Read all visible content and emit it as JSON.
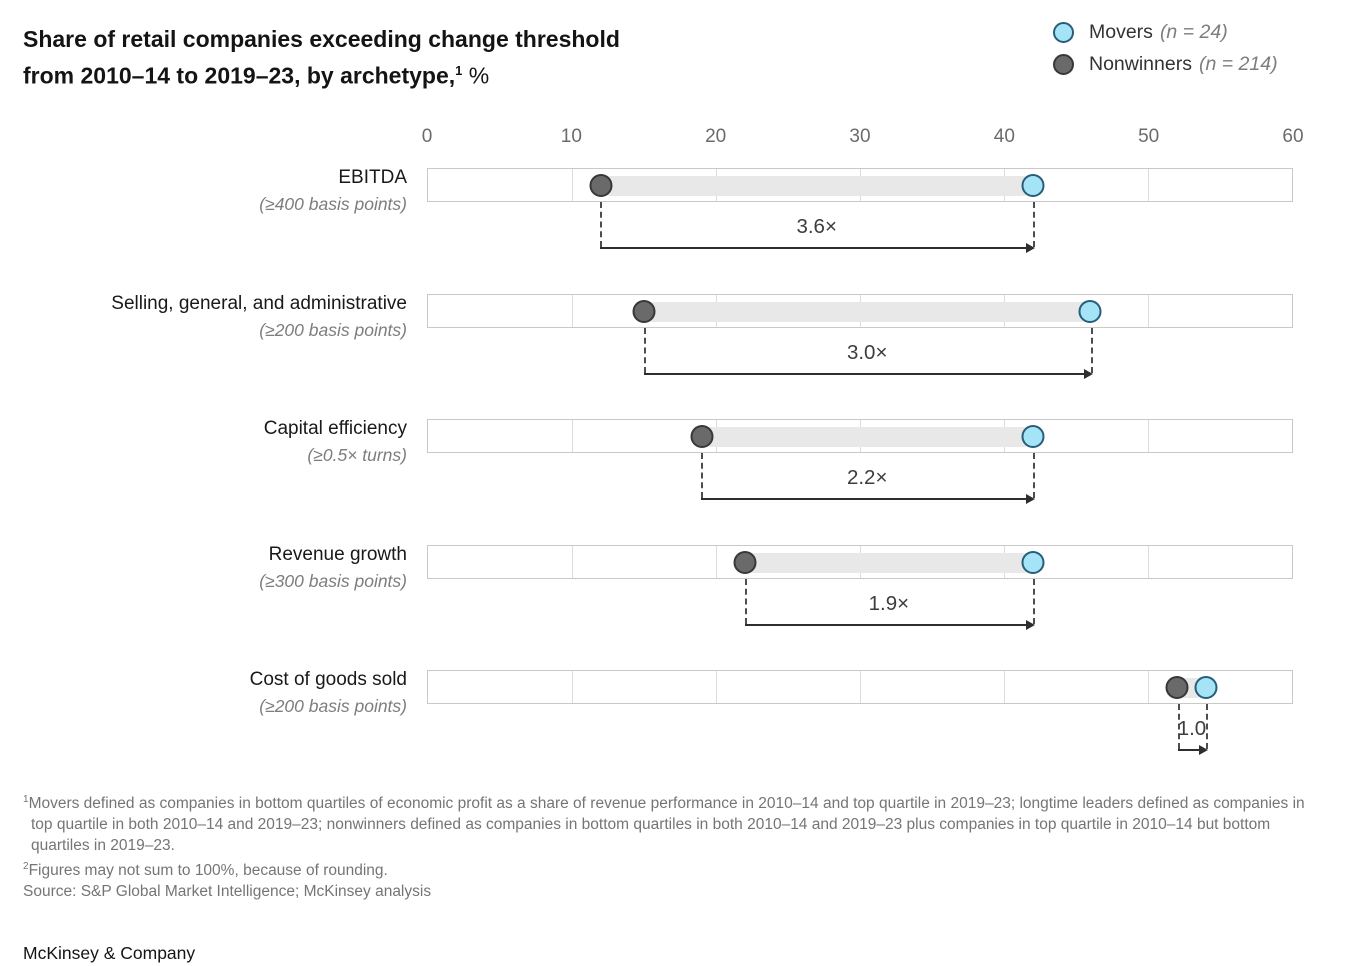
{
  "title": {
    "line1": "Share of retail companies exceeding change threshold",
    "line2_prefix": "from 2010–14 to 2019–23, by archetype,",
    "line2_sup": "1",
    "line2_suffix": " %"
  },
  "legend": {
    "items": [
      {
        "id": "movers",
        "label": "Movers",
        "count": "(n = 24)",
        "fill": "#a5e3f7",
        "stroke": "#275e79"
      },
      {
        "id": "nonwinners",
        "label": "Nonwinners",
        "count": "(n = 214)",
        "fill": "#6a6a6a",
        "stroke": "#383838"
      }
    ]
  },
  "chart_data": {
    "type": "scatter",
    "variant": "dumbbell-dot-plot",
    "value_unit": "% of companies",
    "axis": {
      "min": 0,
      "max": 60,
      "ticks": [
        0,
        10,
        20,
        30,
        40,
        50,
        60
      ],
      "grid": true
    },
    "series": [
      {
        "name": "Nonwinners",
        "values": [
          12,
          15,
          19,
          22,
          52
        ]
      },
      {
        "name": "Movers",
        "values": [
          42,
          46,
          42,
          42,
          54
        ]
      }
    ],
    "rows": [
      {
        "label": "EBITDA",
        "sublabel": "(≥400 basis points)",
        "nonwinners": 12,
        "movers": 42,
        "multiplier": "3.6×"
      },
      {
        "label": "Selling, general, and administrative",
        "sublabel": "(≥200 basis points)",
        "nonwinners": 15,
        "movers": 46,
        "multiplier": "3.0×"
      },
      {
        "label": "Capital efficiency",
        "sublabel": "(≥0.5× turns)",
        "nonwinners": 19,
        "movers": 42,
        "multiplier": "2.2×"
      },
      {
        "label": "Revenue growth",
        "sublabel": "(≥300 basis points)",
        "nonwinners": 22,
        "movers": 42,
        "multiplier": "1.9×"
      },
      {
        "label": "Cost of goods sold",
        "sublabel": "(≥200 basis points)",
        "nonwinners": 52,
        "movers": 54,
        "multiplier": "1.0"
      }
    ],
    "colors": {
      "movers_fill": "#a5e3f7",
      "movers_stroke": "#275e79",
      "nonwinners_fill": "#6a6a6a",
      "nonwinners_stroke": "#383838",
      "range_bar": "#e8e8e8"
    }
  },
  "footnotes": {
    "note1_sup": "1",
    "note1": "Movers defined as companies in bottom quartiles of economic profit as a share of revenue performance in 2010–14 and top quartile in 2019–23; longtime leaders defined as companies in top quartile in both 2010–14 and 2019–23; nonwinners defined as companies in bottom quartiles in both 2010–14 and 2019–23 plus companies in top quartile in 2010–14 but bottom quartiles in 2019–23.",
    "note2_sup": "2",
    "note2": "Figures may not sum to 100%, because of rounding.",
    "source": "Source: S&P Global Market Intelligence; McKinsey analysis"
  },
  "footer": "McKinsey & Company"
}
